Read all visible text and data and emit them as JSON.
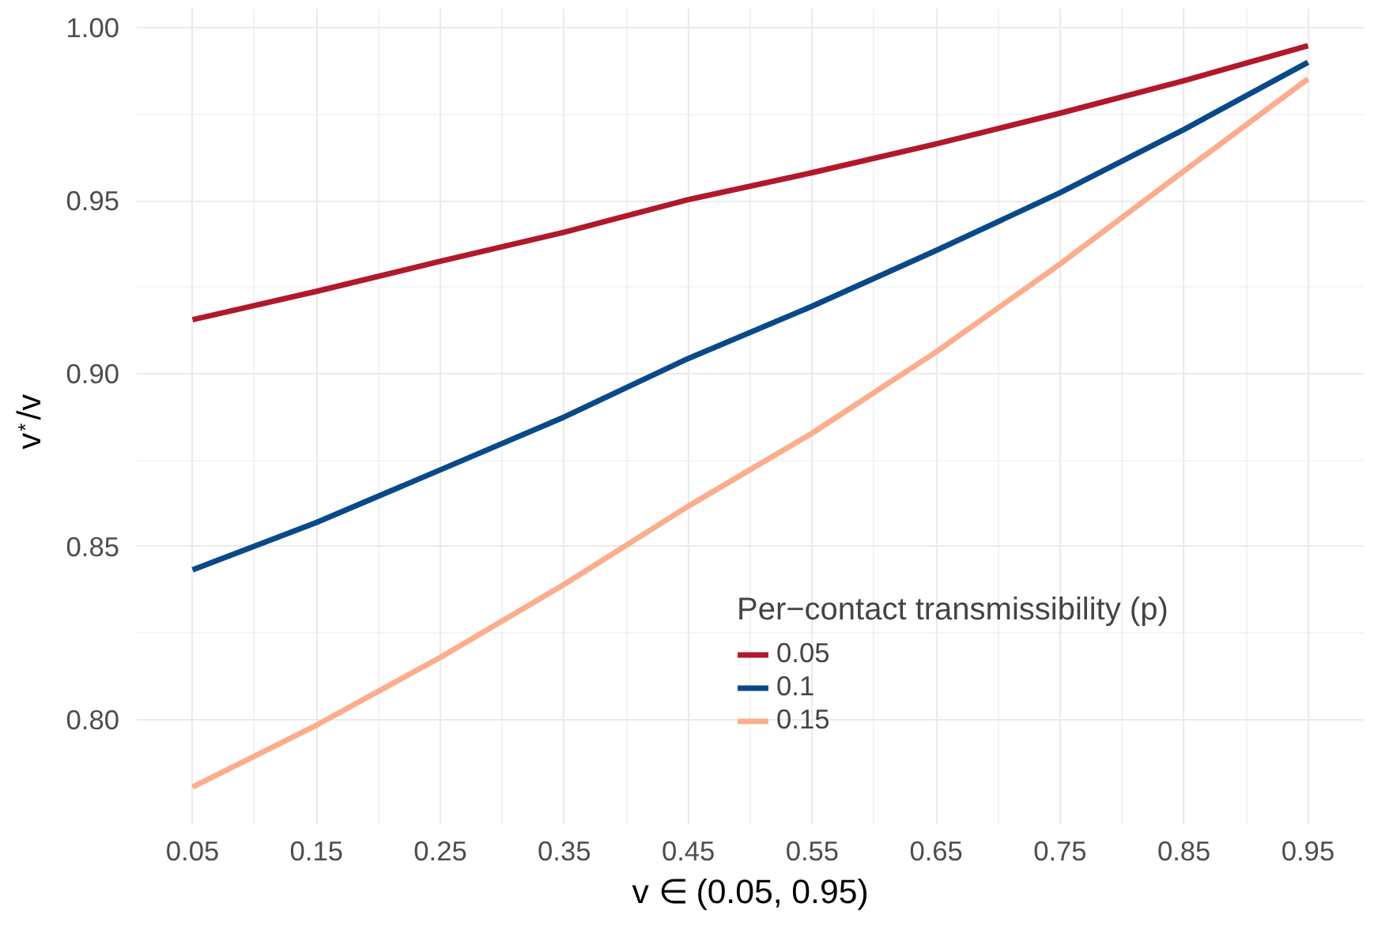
{
  "chart_data": {
    "type": "line",
    "xlabel": "v ∈ (0.05, 0.95)",
    "ylabel": "v$^{*}$/v",
    "legend_title": "Per−contact transmissibility (p)",
    "x": [
      0.05,
      0.15,
      0.25,
      0.35,
      0.45,
      0.55,
      0.65,
      0.75,
      0.85,
      0.95
    ],
    "series": [
      {
        "name": "0.05",
        "color": "#b2182b",
        "values": [
          0.9156,
          0.9238,
          0.9325,
          0.9409,
          0.9503,
          0.9581,
          0.9664,
          0.9753,
          0.9847,
          0.9948
        ]
      },
      {
        "name": "0.1",
        "color": "#08498a",
        "values": [
          0.8433,
          0.857,
          0.8722,
          0.8875,
          0.9044,
          0.9195,
          0.9356,
          0.9523,
          0.9706,
          0.99
        ]
      },
      {
        "name": "0.15",
        "color": "#fcad8c",
        "values": [
          0.7805,
          0.7984,
          0.818,
          0.8391,
          0.8617,
          0.8828,
          0.9063,
          0.9317,
          0.9586,
          0.9852
        ]
      }
    ],
    "xlim": [
      0.005,
      0.995
    ],
    "ylim": [
      0.7698,
      1.0055
    ],
    "xticks": [
      0.05,
      0.15,
      0.25,
      0.35,
      0.45,
      0.55,
      0.65,
      0.75,
      0.85,
      0.95
    ],
    "yticks": [
      {
        "value": 0.8,
        "label": "0.80"
      },
      0.85,
      {
        "value": 0.9,
        "label": "0.90"
      },
      0.95,
      {
        "value": 1.0,
        "label": "1.00"
      }
    ],
    "grid": true,
    "legend": "bottom right",
    "line_style": "solid",
    "marker": "none"
  }
}
